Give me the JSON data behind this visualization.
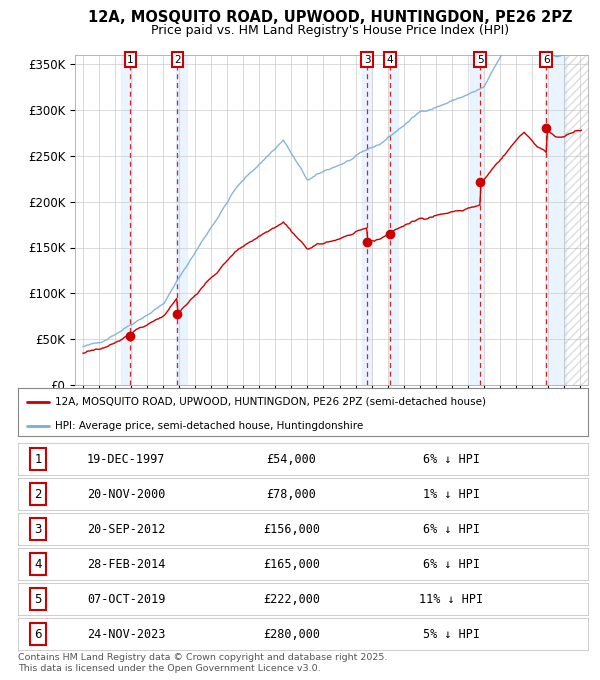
{
  "title_line1": "12A, MOSQUITO ROAD, UPWOOD, HUNTINGDON, PE26 2PZ",
  "title_line2": "Price paid vs. HM Land Registry's House Price Index (HPI)",
  "background_color": "#ffffff",
  "plot_bg_color": "#ffffff",
  "grid_color": "#cccccc",
  "sale_dates_num": [
    1997.96,
    2000.89,
    2012.72,
    2014.16,
    2019.77,
    2023.9
  ],
  "sale_prices": [
    54000,
    78000,
    156000,
    165000,
    222000,
    280000
  ],
  "sale_labels": [
    "1",
    "2",
    "3",
    "4",
    "5",
    "6"
  ],
  "sale_info": [
    {
      "label": "1",
      "date": "19-DEC-1997",
      "price": "£54,000",
      "hpi": "6% ↓ HPI"
    },
    {
      "label": "2",
      "date": "20-NOV-2000",
      "price": "£78,000",
      "hpi": "1% ↓ HPI"
    },
    {
      "label": "3",
      "date": "20-SEP-2012",
      "price": "£156,000",
      "hpi": "6% ↓ HPI"
    },
    {
      "label": "4",
      "date": "28-FEB-2014",
      "price": "£165,000",
      "hpi": "6% ↓ HPI"
    },
    {
      "label": "5",
      "date": "07-OCT-2019",
      "price": "£222,000",
      "hpi": "11% ↓ HPI"
    },
    {
      "label": "6",
      "date": "24-NOV-2023",
      "price": "£280,000",
      "hpi": "5% ↓ HPI"
    }
  ],
  "hpi_line_color": "#7aaddb",
  "price_line_color": "#cc0000",
  "marker_color": "#cc0000",
  "vline_color": "#cc0000",
  "shade_color": "#ddeeff",
  "ylim": [
    0,
    360000
  ],
  "yticks": [
    0,
    50000,
    100000,
    150000,
    200000,
    250000,
    300000,
    350000
  ],
  "ytick_labels": [
    "£0",
    "£50K",
    "£100K",
    "£150K",
    "£200K",
    "£250K",
    "£300K",
    "£350K"
  ],
  "xmin": 1994.5,
  "xmax": 2026.5,
  "footer": "Contains HM Land Registry data © Crown copyright and database right 2025.\nThis data is licensed under the Open Government Licence v3.0.",
  "legend_label1": "12A, MOSQUITO ROAD, UPWOOD, HUNTINGDON, PE26 2PZ (semi-detached house)",
  "legend_label2": "HPI: Average price, semi-detached house, Huntingdonshire"
}
